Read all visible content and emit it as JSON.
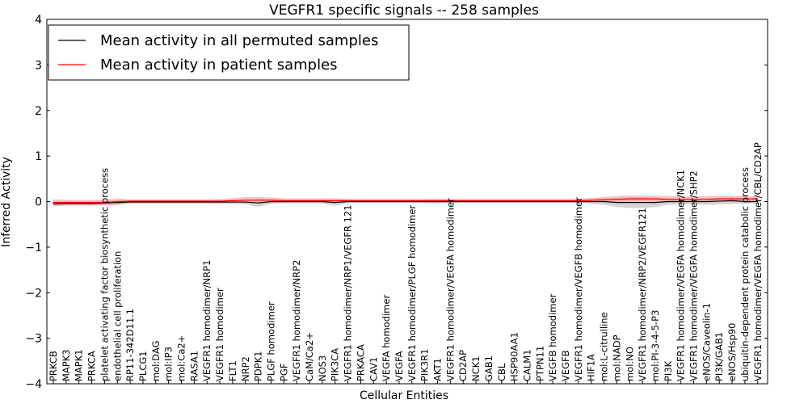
{
  "chart_data": {
    "type": "line",
    "title": "VEGFR1 specific signals -- 258 samples",
    "xlabel": "Cellular Entities",
    "ylabel": "Inferred Activity",
    "ylim": [
      -4,
      4
    ],
    "yticks": [
      -4,
      -3,
      -2,
      -1,
      0,
      1,
      2,
      3,
      4
    ],
    "ytick_labels": [
      "−4",
      "−3",
      "−2",
      "−1",
      "0",
      "1",
      "2",
      "3",
      "4"
    ],
    "legend_position": "top-left",
    "categories": [
      "PRKCB",
      "MAPK3",
      "MAPK1",
      "PRKCA",
      "platelet activating factor biosynthetic process",
      "endothelial cell proliferation",
      "RP11-342D11.1",
      "PLCG1",
      "mol:DAG",
      "mol:IP3",
      "mol:Ca2+",
      "RASA1",
      "VEGFR1 homodimer/NRP1",
      "VEGFR1 homodimer",
      "FLT1",
      "NRP2",
      "PDPK1",
      "PLGF homodimer",
      "PGF",
      "VEGFR1 homodimer/NRP2",
      "CaM/Ca2+",
      "NOS3",
      "PIK3CA",
      "VEGFR1 homodimer/NRP1/VEGFR 121",
      "PRKACA",
      "CAV1",
      "VEGFA homodimer",
      "VEGFA",
      "VEGFR1 homodimer/PLGF homodimer",
      "PIK3R1",
      "AKT1",
      "VEGFR1 homodimer/VEGFA homodimer",
      "CD2AP",
      "NCK1",
      "GAB1",
      "CBL",
      "HSP90AA1",
      "CALM1",
      "PTPN11",
      "VEGFB homodimer",
      "VEGFB",
      "VEGFR1 homodimer/VEGFB homodimer",
      "HIF1A",
      "mol:L-citrulline",
      "mol:NADP",
      "mol:NO",
      "VEGFR1 homodimer/NRP2/VEGFR121",
      "mol:PI-3-4-5-P3",
      "PI3K",
      "VEGFR1 homodimer/VEGFA homodimer/NCK1",
      "VEGFR1 homodimer/VEGFA homodimer/SHP2",
      "eNOS/Caveolin-1",
      "PI3K/GAB1",
      "eNOS/Hsp90",
      "ubiquitin-dependent protein catabolic process",
      "VEGFR1 homodimer/VEGFA homodimer/CBL/CD2AP"
    ],
    "series": [
      {
        "name": "Mean activity in all permuted samples",
        "color": "#000000",
        "band_color": "#b0b0b0",
        "values": [
          -0.05,
          -0.04,
          -0.04,
          -0.04,
          -0.03,
          -0.02,
          -0.01,
          -0.01,
          -0.01,
          -0.01,
          -0.01,
          -0.01,
          -0.01,
          -0.01,
          -0.01,
          -0.01,
          -0.03,
          0.0,
          0.0,
          0.0,
          0.0,
          0.0,
          -0.02,
          0.0,
          0.0,
          0.0,
          0.0,
          0.0,
          0.0,
          0.0,
          0.0,
          0.0,
          0.0,
          0.0,
          0.0,
          0.0,
          0.0,
          0.0,
          0.0,
          0.0,
          0.0,
          0.0,
          0.0,
          0.0,
          -0.02,
          -0.02,
          -0.02,
          -0.02,
          0.0,
          0.0,
          0.0,
          0.0,
          0.01,
          0.02,
          0.0,
          0.0
        ],
        "band": [
          0.05,
          0.05,
          0.05,
          0.05,
          0.05,
          0.05,
          0.04,
          0.04,
          0.04,
          0.04,
          0.04,
          0.04,
          0.04,
          0.04,
          0.04,
          0.05,
          0.09,
          0.05,
          0.04,
          0.04,
          0.04,
          0.04,
          0.07,
          0.04,
          0.03,
          0.03,
          0.03,
          0.03,
          0.03,
          0.04,
          0.05,
          0.04,
          0.03,
          0.03,
          0.03,
          0.03,
          0.03,
          0.03,
          0.03,
          0.03,
          0.03,
          0.03,
          0.05,
          0.07,
          0.1,
          0.12,
          0.12,
          0.1,
          0.07,
          0.06,
          0.06,
          0.07,
          0.07,
          0.07,
          0.05,
          0.04
        ]
      },
      {
        "name": "Mean activity in patient samples",
        "color": "#ff0000",
        "band_color": "#ff9999",
        "values": [
          -0.02,
          -0.02,
          -0.02,
          -0.02,
          -0.02,
          0.0,
          0.01,
          0.01,
          0.01,
          0.01,
          0.01,
          0.01,
          0.01,
          0.01,
          0.02,
          0.03,
          0.03,
          0.03,
          0.02,
          0.02,
          0.02,
          0.02,
          0.02,
          0.02,
          0.02,
          0.02,
          0.02,
          0.02,
          0.02,
          0.02,
          0.02,
          0.02,
          0.02,
          0.02,
          0.02,
          0.02,
          0.02,
          0.02,
          0.02,
          0.02,
          0.02,
          0.02,
          0.03,
          0.04,
          0.05,
          0.06,
          0.06,
          0.06,
          0.05,
          0.05,
          0.05,
          0.05,
          0.06,
          0.06,
          0.06,
          0.06
        ],
        "band": [
          0.07,
          0.06,
          0.06,
          0.06,
          0.06,
          0.07,
          0.04,
          0.04,
          0.04,
          0.04,
          0.04,
          0.04,
          0.04,
          0.05,
          0.06,
          0.07,
          0.07,
          0.06,
          0.05,
          0.05,
          0.05,
          0.05,
          0.05,
          0.04,
          0.04,
          0.04,
          0.04,
          0.04,
          0.04,
          0.04,
          0.04,
          0.04,
          0.04,
          0.04,
          0.04,
          0.04,
          0.04,
          0.04,
          0.04,
          0.04,
          0.04,
          0.04,
          0.05,
          0.06,
          0.07,
          0.07,
          0.07,
          0.07,
          0.07,
          0.07,
          0.07,
          0.07,
          0.07,
          0.07,
          0.06,
          0.06
        ]
      }
    ]
  }
}
